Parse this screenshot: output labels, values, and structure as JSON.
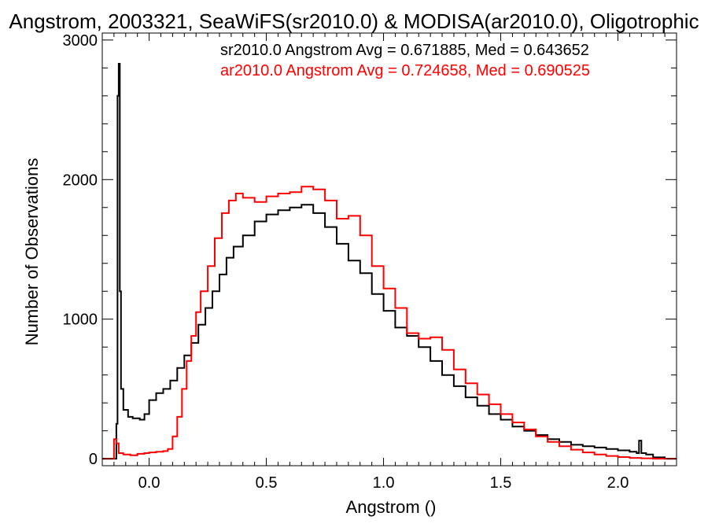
{
  "chart_data": {
    "type": "line",
    "title": "Angstrom, 2003321, SeaWiFS(sr2010.0) & MODISA(ar2010.0), Oligotrophic",
    "xlabel": "Angstrom ()",
    "ylabel": "Number of Observations",
    "xlim": [
      -0.2,
      2.25
    ],
    "ylim": [
      -50,
      3050
    ],
    "x_ticks": [
      0.0,
      0.5,
      1.0,
      1.5,
      2.0
    ],
    "x_tick_labels": [
      "0.0",
      "0.5",
      "1.0",
      "1.5",
      "2.0"
    ],
    "y_ticks": [
      0,
      1000,
      2000,
      3000
    ],
    "y_tick_labels": [
      "0",
      "1000",
      "2000",
      "3000"
    ],
    "grid": false,
    "legend_position": "top-right",
    "colors": {
      "sr2010": "#000000",
      "ar2010": "#ff0000",
      "axes": "#000000"
    },
    "series": [
      {
        "name": "sr2010.0",
        "annotation": "sr2010.0 Angstrom Avg = 0.671885, Med = 0.643652",
        "color": "#000000",
        "points": [
          [
            -0.2,
            0
          ],
          [
            -0.15,
            0
          ],
          [
            -0.14,
            250
          ],
          [
            -0.135,
            2600
          ],
          [
            -0.13,
            2830
          ],
          [
            -0.125,
            1200
          ],
          [
            -0.12,
            500
          ],
          [
            -0.11,
            350
          ],
          [
            -0.09,
            300
          ],
          [
            -0.07,
            290
          ],
          [
            -0.04,
            280
          ],
          [
            -0.02,
            320
          ],
          [
            0.0,
            420
          ],
          [
            0.03,
            470
          ],
          [
            0.06,
            500
          ],
          [
            0.09,
            560
          ],
          [
            0.12,
            650
          ],
          [
            0.15,
            740
          ],
          [
            0.18,
            830
          ],
          [
            0.21,
            960
          ],
          [
            0.24,
            1080
          ],
          [
            0.27,
            1200
          ],
          [
            0.3,
            1320
          ],
          [
            0.33,
            1440
          ],
          [
            0.36,
            1520
          ],
          [
            0.4,
            1600
          ],
          [
            0.45,
            1700
          ],
          [
            0.5,
            1750
          ],
          [
            0.55,
            1780
          ],
          [
            0.6,
            1800
          ],
          [
            0.65,
            1820
          ],
          [
            0.7,
            1760
          ],
          [
            0.75,
            1660
          ],
          [
            0.8,
            1540
          ],
          [
            0.85,
            1420
          ],
          [
            0.9,
            1330
          ],
          [
            0.95,
            1180
          ],
          [
            1.0,
            1060
          ],
          [
            1.05,
            940
          ],
          [
            1.1,
            880
          ],
          [
            1.15,
            800
          ],
          [
            1.2,
            700
          ],
          [
            1.25,
            600
          ],
          [
            1.3,
            520
          ],
          [
            1.35,
            440
          ],
          [
            1.4,
            380
          ],
          [
            1.45,
            320
          ],
          [
            1.5,
            280
          ],
          [
            1.55,
            230
          ],
          [
            1.6,
            200
          ],
          [
            1.65,
            170
          ],
          [
            1.7,
            140
          ],
          [
            1.75,
            120
          ],
          [
            1.8,
            100
          ],
          [
            1.85,
            90
          ],
          [
            1.9,
            80
          ],
          [
            1.95,
            70
          ],
          [
            2.0,
            60
          ],
          [
            2.05,
            50
          ],
          [
            2.08,
            40
          ],
          [
            2.09,
            130
          ],
          [
            2.1,
            40
          ],
          [
            2.12,
            30
          ],
          [
            2.15,
            10
          ],
          [
            2.2,
            0
          ],
          [
            2.25,
            0
          ]
        ]
      },
      {
        "name": "ar2010.0",
        "annotation": "ar2010.0 Angstrom Avg = 0.724658, Med = 0.690525",
        "color": "#ff0000",
        "points": [
          [
            -0.2,
            0
          ],
          [
            -0.16,
            0
          ],
          [
            -0.15,
            140
          ],
          [
            -0.14,
            110
          ],
          [
            -0.13,
            40
          ],
          [
            -0.11,
            30
          ],
          [
            -0.08,
            25
          ],
          [
            -0.05,
            35
          ],
          [
            -0.02,
            40
          ],
          [
            0.0,
            45
          ],
          [
            0.03,
            50
          ],
          [
            0.06,
            55
          ],
          [
            0.08,
            70
          ],
          [
            0.1,
            160
          ],
          [
            0.12,
            300
          ],
          [
            0.14,
            500
          ],
          [
            0.16,
            700
          ],
          [
            0.18,
            880
          ],
          [
            0.2,
            1050
          ],
          [
            0.22,
            1200
          ],
          [
            0.25,
            1380
          ],
          [
            0.28,
            1580
          ],
          [
            0.31,
            1760
          ],
          [
            0.34,
            1850
          ],
          [
            0.37,
            1900
          ],
          [
            0.4,
            1870
          ],
          [
            0.45,
            1840
          ],
          [
            0.5,
            1880
          ],
          [
            0.55,
            1900
          ],
          [
            0.6,
            1910
          ],
          [
            0.65,
            1950
          ],
          [
            0.7,
            1930
          ],
          [
            0.75,
            1850
          ],
          [
            0.8,
            1720
          ],
          [
            0.85,
            1740
          ],
          [
            0.9,
            1600
          ],
          [
            0.95,
            1380
          ],
          [
            1.0,
            1220
          ],
          [
            1.05,
            1080
          ],
          [
            1.1,
            900
          ],
          [
            1.15,
            860
          ],
          [
            1.2,
            870
          ],
          [
            1.25,
            780
          ],
          [
            1.3,
            640
          ],
          [
            1.35,
            540
          ],
          [
            1.4,
            460
          ],
          [
            1.45,
            390
          ],
          [
            1.5,
            320
          ],
          [
            1.55,
            260
          ],
          [
            1.6,
            210
          ],
          [
            1.65,
            160
          ],
          [
            1.7,
            120
          ],
          [
            1.75,
            90
          ],
          [
            1.8,
            65
          ],
          [
            1.85,
            45
          ],
          [
            1.9,
            30
          ],
          [
            1.95,
            20
          ],
          [
            2.0,
            12
          ],
          [
            2.05,
            6
          ],
          [
            2.1,
            3
          ],
          [
            2.15,
            0
          ],
          [
            2.25,
            0
          ]
        ]
      }
    ]
  }
}
